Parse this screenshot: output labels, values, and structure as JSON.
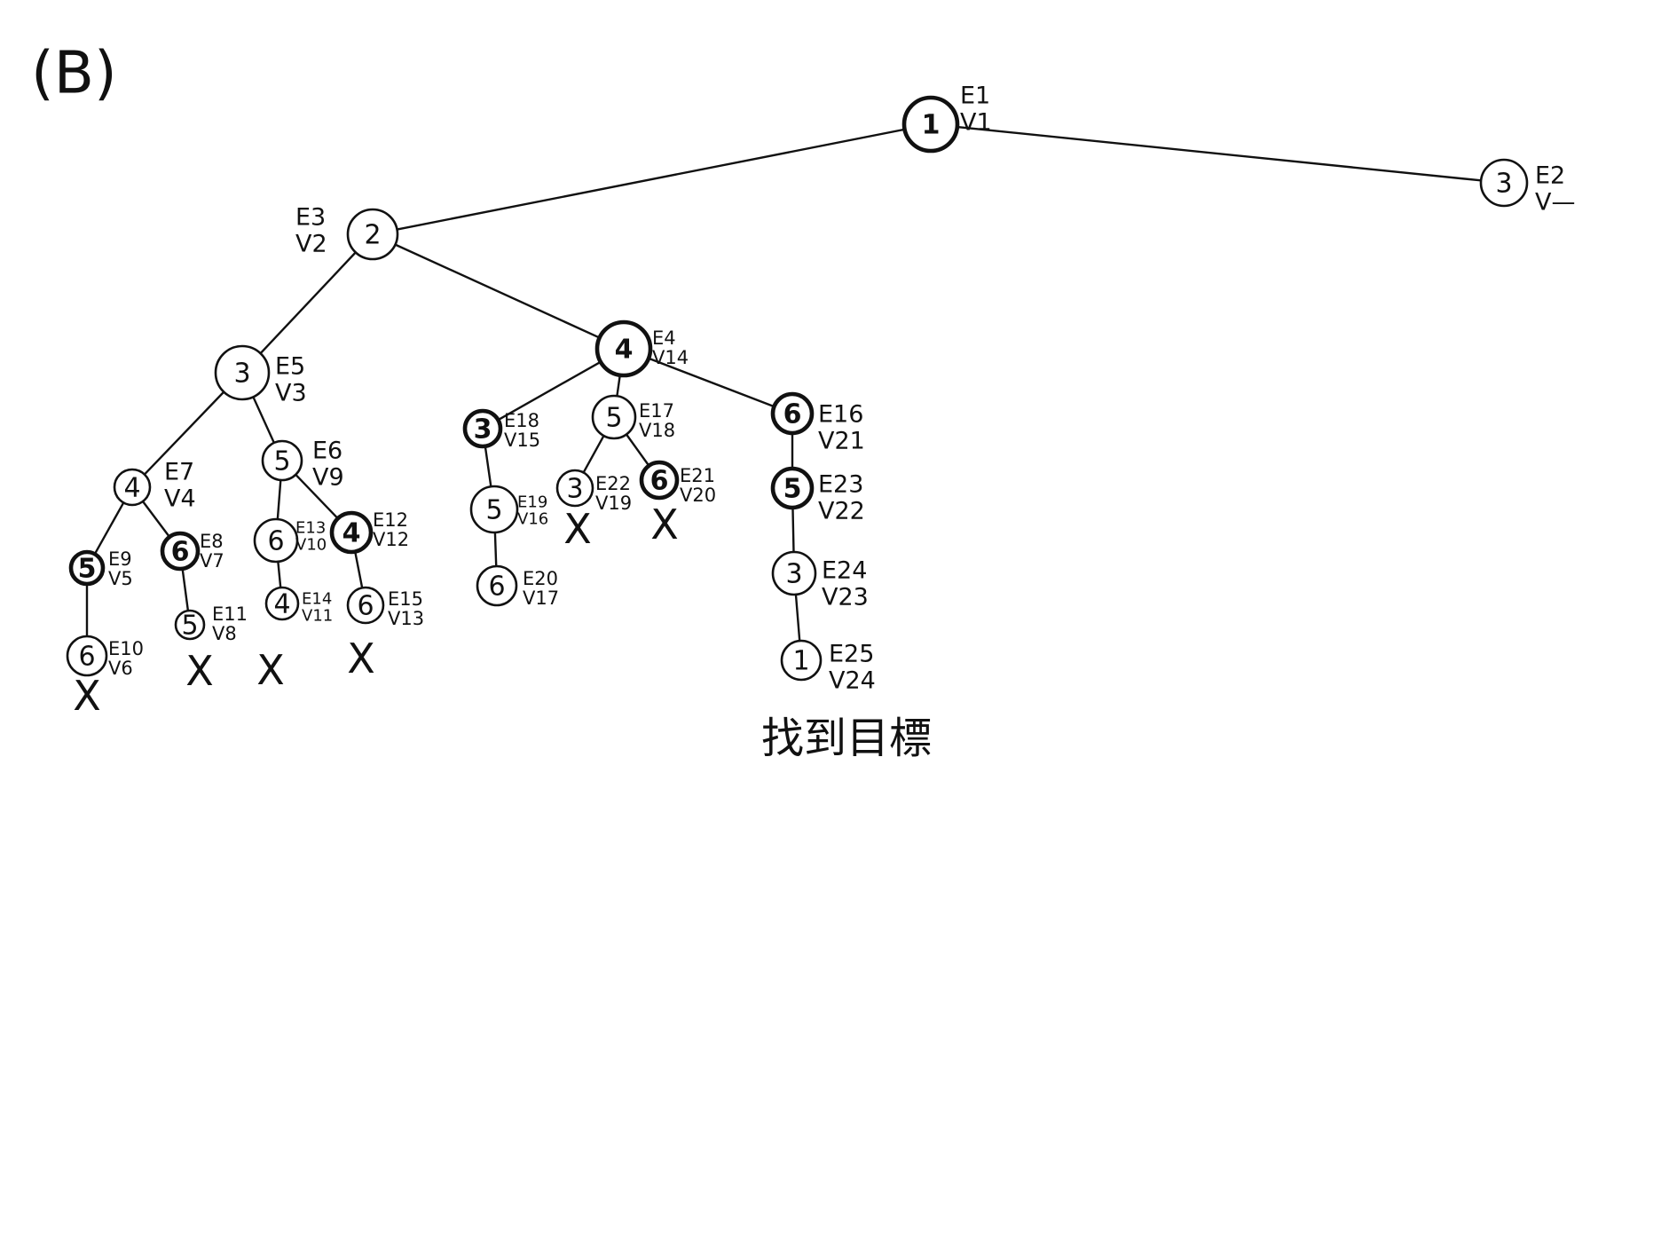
{
  "part_label": "(B)",
  "goal_text": "找到目標",
  "nodes": [
    {
      "id": "n1",
      "value": "1",
      "e": "E1",
      "v": "V1",
      "bold": true
    },
    {
      "id": "n2",
      "value": "2",
      "e": "E3",
      "v": "V2",
      "bold": false
    },
    {
      "id": "n3r",
      "value": "3",
      "e": "E2",
      "v": "V—",
      "bold": false
    },
    {
      "id": "n4",
      "value": "3",
      "e": "E5",
      "v": "V3",
      "bold": false
    },
    {
      "id": "n5",
      "value": "4",
      "e": "E4",
      "v": "V14",
      "bold": true
    },
    {
      "id": "n6",
      "value": "4",
      "e": "E7",
      "v": "V4",
      "bold": false
    },
    {
      "id": "n7",
      "value": "5",
      "e": "E6",
      "v": "V9",
      "bold": false
    },
    {
      "id": "n8",
      "value": "3",
      "e": "E18",
      "v": "V15",
      "bold": true
    },
    {
      "id": "n9",
      "value": "5",
      "e": "E17",
      "v": "V18",
      "bold": false
    },
    {
      "id": "n10",
      "value": "6",
      "e": "E16",
      "v": "V21",
      "bold": true
    },
    {
      "id": "n11",
      "value": "5",
      "e": "E9",
      "v": "V5",
      "bold": true
    },
    {
      "id": "n12",
      "value": "6",
      "e": "E8",
      "v": "V7",
      "bold": true
    },
    {
      "id": "n13",
      "value": "6",
      "e": "E13",
      "v": "V10",
      "bold": false
    },
    {
      "id": "n14",
      "value": "4",
      "e": "E12",
      "v": "V12",
      "bold": true
    },
    {
      "id": "n15",
      "value": "5",
      "e": "E19",
      "v": "V16",
      "bold": false
    },
    {
      "id": "n16",
      "value": "3",
      "e": "E22",
      "v": "V19",
      "bold": false
    },
    {
      "id": "n17",
      "value": "6",
      "e": "E21",
      "v": "V20",
      "bold": true
    },
    {
      "id": "n18",
      "value": "5",
      "e": "E23",
      "v": "V22",
      "bold": true
    },
    {
      "id": "n19",
      "value": "6",
      "e": "E10",
      "v": "V6",
      "bold": false
    },
    {
      "id": "n20",
      "value": "5",
      "e": "E11",
      "v": "V8",
      "bold": false
    },
    {
      "id": "n21",
      "value": "4",
      "e": "E14",
      "v": "V11",
      "bold": false
    },
    {
      "id": "n22",
      "value": "6",
      "e": "E15",
      "v": "V13",
      "bold": false
    },
    {
      "id": "n23",
      "value": "6",
      "e": "E20",
      "v": "V17",
      "bold": false
    },
    {
      "id": "n24",
      "value": "3",
      "e": "E24",
      "v": "V23",
      "bold": false
    },
    {
      "id": "n25",
      "value": "1",
      "e": "E25",
      "v": "V24",
      "bold": false
    }
  ],
  "edges": [
    [
      "n1",
      "n2"
    ],
    [
      "n1",
      "n3r"
    ],
    [
      "n2",
      "n4"
    ],
    [
      "n2",
      "n5"
    ],
    [
      "n4",
      "n6"
    ],
    [
      "n4",
      "n7"
    ],
    [
      "n5",
      "n8"
    ],
    [
      "n5",
      "n9"
    ],
    [
      "n5",
      "n10"
    ],
    [
      "n6",
      "n11"
    ],
    [
      "n6",
      "n12"
    ],
    [
      "n7",
      "n13"
    ],
    [
      "n7",
      "n14"
    ],
    [
      "n8",
      "n15"
    ],
    [
      "n9",
      "n16"
    ],
    [
      "n9",
      "n17"
    ],
    [
      "n10",
      "n18"
    ],
    [
      "n11",
      "n19"
    ],
    [
      "n12",
      "n20"
    ],
    [
      "n13",
      "n21"
    ],
    [
      "n14",
      "n22"
    ],
    [
      "n15",
      "n23"
    ],
    [
      "n18",
      "n24"
    ],
    [
      "n24",
      "n25"
    ]
  ],
  "pruned_marks": [
    {
      "id": "x1",
      "mark": "X"
    },
    {
      "id": "x2",
      "mark": "X"
    },
    {
      "id": "x3",
      "mark": "X"
    },
    {
      "id": "x4",
      "mark": "X"
    },
    {
      "id": "x5",
      "mark": "X"
    },
    {
      "id": "x6",
      "mark": "X"
    }
  ]
}
